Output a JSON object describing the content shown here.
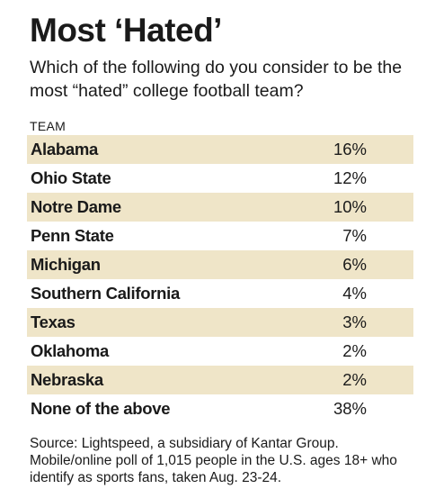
{
  "title": "Most ‘Hated’",
  "subtitle": "Which of the following do you consider to be the most “hated” college football team?",
  "column_header": "TEAM",
  "source": "Source: Lightspeed, a subsidiary of Kantar Group. Mobile/online poll of 1,015 people in the U.S. ages 18+ who identify as sports fans, taken Aug. 23-24.",
  "colors": {
    "shaded_row": "#efe5c8",
    "text": "#1a1a1a",
    "background": "#ffffff"
  },
  "chart_data": {
    "type": "table",
    "columns": [
      "TEAM",
      ""
    ],
    "rows": [
      {
        "team": "Alabama",
        "value": 16,
        "label": "16%"
      },
      {
        "team": "Ohio State",
        "value": 12,
        "label": "12%"
      },
      {
        "team": "Notre Dame",
        "value": 10,
        "label": "10%"
      },
      {
        "team": "Penn State",
        "value": 7,
        "label": "7%"
      },
      {
        "team": "Michigan",
        "value": 6,
        "label": "6%"
      },
      {
        "team": "Southern California",
        "value": 4,
        "label": "4%"
      },
      {
        "team": "Texas",
        "value": 3,
        "label": "3%"
      },
      {
        "team": "Oklahoma",
        "value": 2,
        "label": "2%"
      },
      {
        "team": "Nebraska",
        "value": 2,
        "label": "2%"
      },
      {
        "team": "None of the above",
        "value": 38,
        "label": "38%"
      }
    ]
  }
}
